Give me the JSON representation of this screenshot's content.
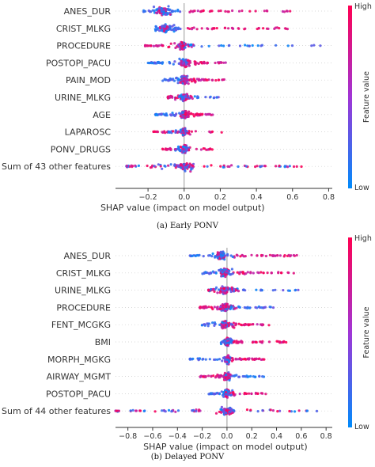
{
  "chart_data": [
    {
      "type": "scatter",
      "kind": "shap-beeswarm",
      "caption": "(a) Early PONV",
      "xlabel": "SHAP value (impact on model output)",
      "xlim": [
        -0.38,
        0.82
      ],
      "xticks": [
        "−0.2",
        "0.0",
        "0.2",
        "0.4",
        "0.6",
        "0.8"
      ],
      "xtick_values": [
        -0.2,
        0.0,
        0.2,
        0.4,
        0.6,
        0.8
      ],
      "colorbar": {
        "high": "High",
        "low": "Low",
        "label": "Feature value"
      },
      "features": [
        {
          "name": "ANES_DUR",
          "low_range": [
            -0.23,
            -0.02
          ],
          "high_range": [
            0.03,
            0.6
          ],
          "core": -0.12,
          "spread": 0.05
        },
        {
          "name": "CRIST_MLKG",
          "low_range": [
            -0.16,
            -0.02
          ],
          "high_range": [
            0.02,
            0.58
          ],
          "core": -0.11,
          "spread": 0.04
        },
        {
          "name": "PROCEDURE",
          "low_range": [
            0.02,
            0.78
          ],
          "high_range": [
            -0.22,
            0.05
          ],
          "core": -0.01,
          "spread": 0.03
        },
        {
          "name": "POSTOPI_PACU",
          "low_range": [
            -0.2,
            0.05
          ],
          "high_range": [
            0.02,
            0.24
          ],
          "core": 0.0,
          "spread": 0.03
        },
        {
          "name": "PAIN_MOD",
          "low_range": [
            -0.12,
            0.02
          ],
          "high_range": [
            0.02,
            0.24
          ],
          "core": 0.0,
          "spread": 0.03
        },
        {
          "name": "URINE_MLKG",
          "low_range": [
            -0.09,
            0.2
          ],
          "high_range": [
            -0.09,
            0.05
          ],
          "core": 0.0,
          "spread": 0.03
        },
        {
          "name": "AGE",
          "low_range": [
            -0.16,
            0.0
          ],
          "high_range": [
            0.0,
            0.17
          ],
          "core": 0.0,
          "spread": 0.03
        },
        {
          "name": "LAPAROSC",
          "low_range": [
            -0.1,
            0.02
          ],
          "high_range": [
            -0.17,
            0.22
          ],
          "core": 0.0,
          "spread": 0.02
        },
        {
          "name": "PONV_DRUGS",
          "low_range": [
            -0.05,
            0.03
          ],
          "high_range": [
            -0.12,
            0.17
          ],
          "core": 0.0,
          "spread": 0.02
        },
        {
          "name": "Sum of 43 other features",
          "low_range": [
            -0.32,
            0.65
          ],
          "high_range": [
            -0.32,
            0.65
          ],
          "core": 0.0,
          "spread": 0.08
        }
      ]
    },
    {
      "type": "scatter",
      "kind": "shap-beeswarm",
      "caption": "(b) Delayed PONV",
      "xlabel": "SHAP value (impact on model output)",
      "xlim": [
        -0.9,
        0.85
      ],
      "xticks": [
        "−0.8",
        "−0.6",
        "−0.4",
        "−0.2",
        "0.0",
        "0.2",
        "0.4",
        "0.6",
        "0.8"
      ],
      "xtick_values": [
        -0.8,
        -0.6,
        -0.4,
        -0.2,
        0.0,
        0.2,
        0.4,
        0.6,
        0.8
      ],
      "colorbar": {
        "high": "High",
        "low": "Low",
        "label": "Feature value"
      },
      "features": [
        {
          "name": "ANES_DUR",
          "low_range": [
            -0.3,
            0.05
          ],
          "high_range": [
            0.05,
            0.57
          ],
          "core": -0.05,
          "spread": 0.06
        },
        {
          "name": "CRIST_MLKG",
          "low_range": [
            -0.2,
            0.05
          ],
          "high_range": [
            0.05,
            0.55
          ],
          "core": -0.02,
          "spread": 0.06
        },
        {
          "name": "URINE_MLKG",
          "low_range": [
            -0.15,
            0.6
          ],
          "high_range": [
            -0.15,
            0.1
          ],
          "core": -0.02,
          "spread": 0.05
        },
        {
          "name": "PROCEDURE",
          "low_range": [
            0.02,
            0.42
          ],
          "high_range": [
            -0.22,
            0.1
          ],
          "core": -0.02,
          "spread": 0.05
        },
        {
          "name": "FENT_MCGKG",
          "low_range": [
            -0.22,
            0.05
          ],
          "high_range": [
            0.0,
            0.35
          ],
          "core": -0.02,
          "spread": 0.05
        },
        {
          "name": "BMI",
          "low_range": [
            -0.05,
            0.05
          ],
          "high_range": [
            0.05,
            0.5
          ],
          "core": 0.0,
          "spread": 0.03
        },
        {
          "name": "MORPH_MGKG",
          "low_range": [
            -0.3,
            0.05
          ],
          "high_range": [
            0.0,
            0.3
          ],
          "core": 0.0,
          "spread": 0.03
        },
        {
          "name": "AIRWAY_MGMT",
          "low_range": [
            0.0,
            0.3
          ],
          "high_range": [
            -0.22,
            0.03
          ],
          "core": 0.0,
          "spread": 0.04
        },
        {
          "name": "POSTOPI_PACU",
          "low_range": [
            -0.15,
            0.05
          ],
          "high_range": [
            0.0,
            0.32
          ],
          "core": 0.0,
          "spread": 0.03
        },
        {
          "name": "Sum of 44 other features",
          "low_range": [
            -0.9,
            0.75
          ],
          "high_range": [
            -0.9,
            0.75
          ],
          "core": 0.0,
          "spread": 0.12
        }
      ]
    }
  ],
  "colors": {
    "high": "#ff0052",
    "low": "#008bfb",
    "mid": "#a135d6"
  }
}
